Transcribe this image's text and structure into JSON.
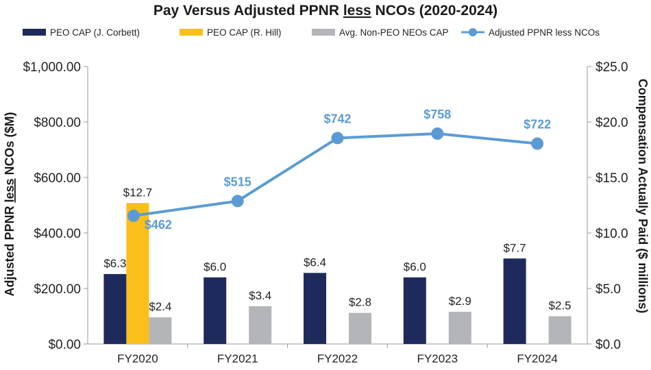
{
  "chart_data": {
    "type": "bar",
    "title_parts": {
      "before": "Pay Versus Adjusted PPNR ",
      "underlined": "less",
      "after": " NCOs (2020-2024)"
    },
    "categories": [
      "FY2020",
      "FY2021",
      "FY2022",
      "FY2023",
      "FY2024"
    ],
    "series": [
      {
        "name": "PEO CAP (J. Corbett)",
        "type": "bar",
        "axis": "right",
        "color": "#1f2a5c",
        "values": [
          6.3,
          6.0,
          6.4,
          6.0,
          7.7
        ],
        "labels": [
          "$6.3",
          "$6.0",
          "$6.4",
          "$6.0",
          "$7.7"
        ]
      },
      {
        "name": "PEO CAP (R. Hill)",
        "type": "bar",
        "axis": "right",
        "color": "#fbbf1a",
        "values": [
          12.7,
          null,
          null,
          null,
          null
        ],
        "labels": [
          "$12.7",
          "",
          "",
          "",
          ""
        ]
      },
      {
        "name": "Avg. Non-PEO NEOs CAP",
        "type": "bar",
        "axis": "right",
        "color": "#b3b5b8",
        "values": [
          2.4,
          3.4,
          2.8,
          2.9,
          2.5
        ],
        "labels": [
          "$2.4",
          "$3.4",
          "$2.8",
          "$2.9",
          "$2.5"
        ]
      },
      {
        "name": "Adjusted PPNR less NCOs",
        "type": "line",
        "axis": "left",
        "color": "#5b9bd5",
        "values": [
          462,
          515,
          742,
          758,
          722
        ],
        "labels": [
          "$462",
          "$515",
          "$742",
          "$758",
          "$722"
        ]
      }
    ],
    "left_axis": {
      "title_parts": {
        "before": "Adjusted PPNR ",
        "underlined": "less",
        "after": " NCOs ($M)"
      },
      "range": [
        0,
        1000
      ],
      "ticks": [
        0,
        200,
        400,
        600,
        800,
        1000
      ],
      "tick_labels": [
        "$0.00",
        "$200.00",
        "$400.00",
        "$600.00",
        "$800.00",
        "$1,000.00"
      ]
    },
    "right_axis": {
      "title": "Compensation Actually Paid ($ millions)",
      "range": [
        0,
        25
      ],
      "ticks": [
        0,
        5,
        10,
        15,
        20,
        25
      ],
      "tick_labels": [
        "$0.0",
        "$5.0",
        "$10.0",
        "$15.0",
        "$20.0",
        "$25.0"
      ]
    },
    "legend_position": "top"
  }
}
